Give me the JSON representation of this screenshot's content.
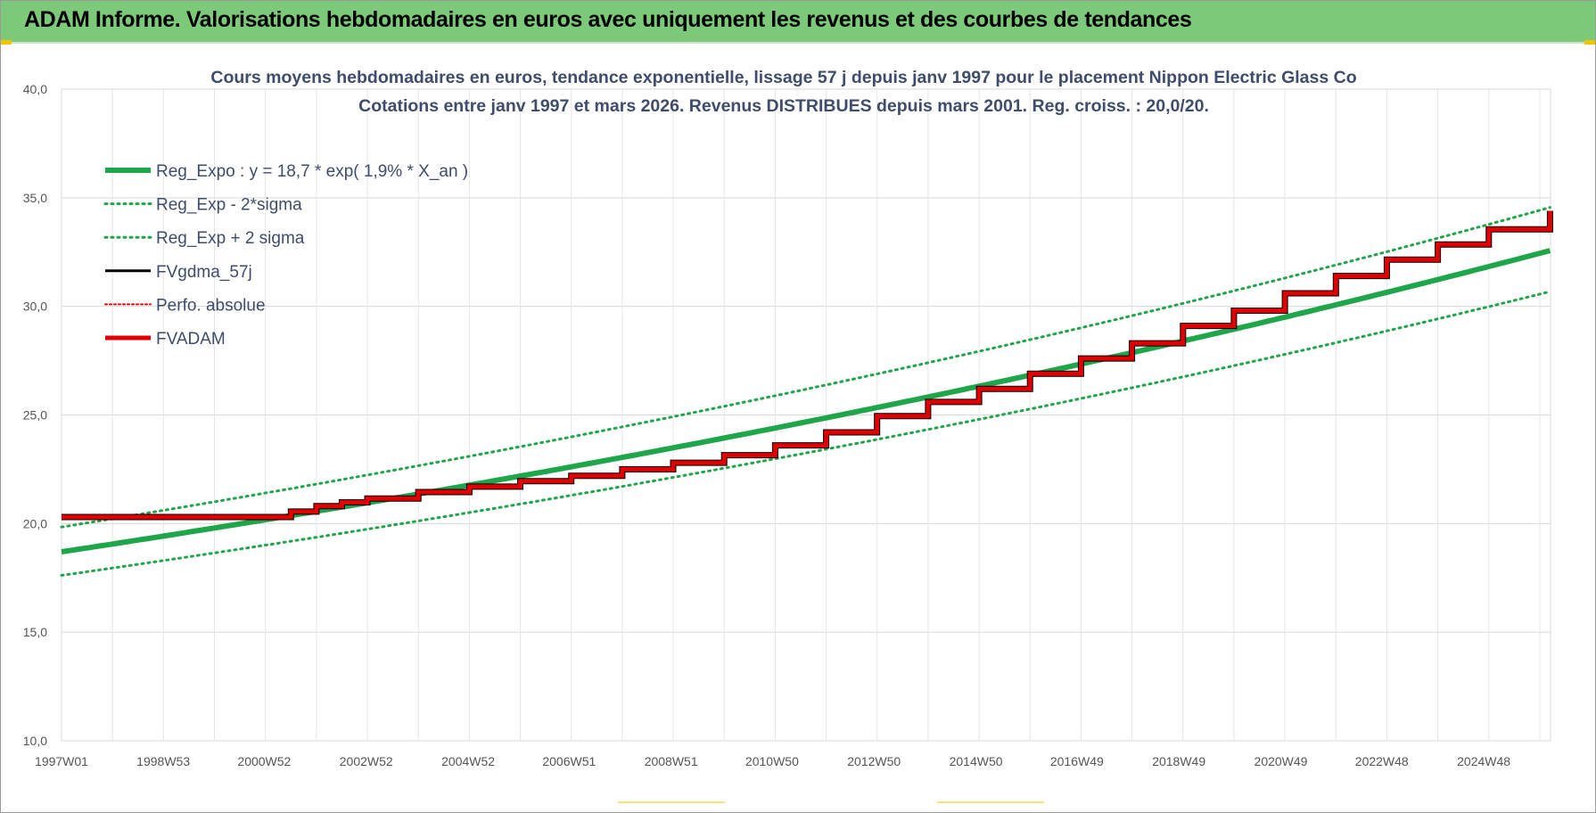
{
  "header": {
    "title": "ADAM Informe. Valorisations hebdomadaires en euros avec uniquement les revenus et des courbes de tendances"
  },
  "colors": {
    "header_bg": "#7dc97a",
    "trend_green": "#1fa64a",
    "adam_red": "#e00000",
    "gdma_black": "#000000"
  },
  "chart_data": {
    "type": "line",
    "title": "Cours moyens hebdomadaires en euros, tendance exponentielle, lissage 57 j depuis janv 1997 pour le placement Nippon Electric Glass Co",
    "subtitle": "Cotations entre janv 1997 et mars 2026. Revenus DISTRIBUES depuis mars 2001. Reg. croiss. : 20,0/20.",
    "x_axis": {
      "start": "1997W01",
      "end": "2026W12",
      "tick_labels": [
        "1997W01",
        "1998W53",
        "2000W52",
        "2002W52",
        "2004W52",
        "2006W51",
        "2008W51",
        "2010W50",
        "2012W50",
        "2014W50",
        "2016W49",
        "2018W49",
        "2020W49",
        "2022W48",
        "2024W48"
      ]
    },
    "y_axis": {
      "min": 10,
      "max": 40,
      "tick_labels": [
        "10,0",
        "15,0",
        "20,0",
        "25,0",
        "30,0",
        "35,0",
        "40,0"
      ]
    },
    "grid": true,
    "legend_position": "top-left",
    "trend": {
      "a": 18.7,
      "rate": 0.019,
      "sigma_low_factor": 0.942,
      "sigma_high_factor": 1.061
    },
    "series": [
      {
        "name": "Reg_Expo : y = 18,7 * exp( 1,9% *  X_an )",
        "style": "solid-thick",
        "color": "#1fa64a"
      },
      {
        "name": "Reg_Exp - 2*sigma",
        "style": "dotted",
        "color": "#1fa64a"
      },
      {
        "name": "Reg_Exp + 2 sigma",
        "style": "dotted",
        "color": "#1fa64a"
      },
      {
        "name": "FVgdma_57j",
        "style": "solid",
        "color": "#000000"
      },
      {
        "name": "Perfo. absolue",
        "style": "dotted-thin",
        "color": "#e00000"
      },
      {
        "name": "FVADAM",
        "style": "solid-thick",
        "color": "#e00000"
      }
    ],
    "fvadam": {
      "x": [
        1997.0,
        2001.0,
        2001.5,
        2002.0,
        2002.5,
        2003.0,
        2004.0,
        2005.0,
        2006.0,
        2007.0,
        2008.0,
        2009.0,
        2010.0,
        2011.0,
        2012.0,
        2013.0,
        2014.0,
        2015.0,
        2016.0,
        2017.0,
        2018.0,
        2019.0,
        2020.0,
        2021.0,
        2022.0,
        2023.0,
        2024.0,
        2025.0,
        2026.2
      ],
      "y": [
        20.3,
        20.3,
        20.55,
        20.8,
        20.98,
        21.15,
        21.45,
        21.7,
        21.95,
        22.2,
        22.5,
        22.8,
        23.15,
        23.6,
        24.2,
        24.95,
        25.6,
        26.2,
        26.9,
        27.6,
        28.3,
        29.1,
        29.8,
        30.6,
        31.4,
        32.15,
        32.85,
        33.55,
        34.4
      ]
    }
  }
}
